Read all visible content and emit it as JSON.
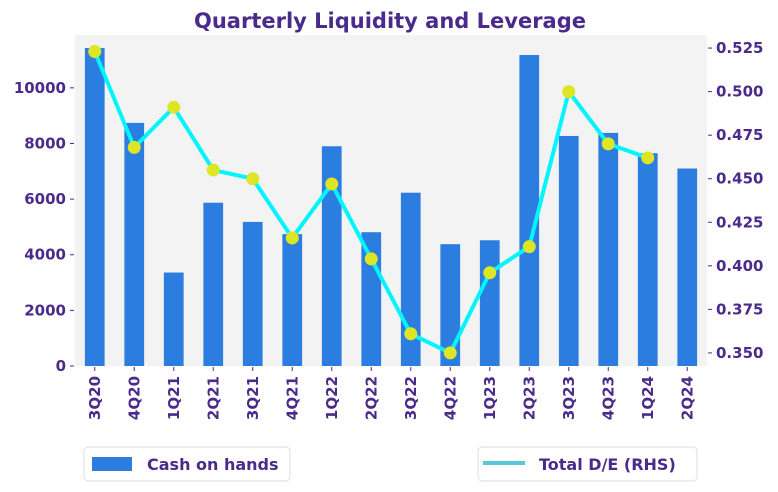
{
  "chart_data": {
    "type": "bar",
    "title": "Quarterly Liquidity and Leverage",
    "xlabel": "",
    "ylabel": "",
    "categories": [
      "3Q20",
      "4Q20",
      "1Q21",
      "2Q21",
      "3Q21",
      "4Q21",
      "1Q22",
      "2Q22",
      "3Q22",
      "4Q22",
      "1Q23",
      "2Q23",
      "3Q23",
      "4Q23",
      "1Q24",
      "2Q24"
    ],
    "series": [
      {
        "name": "Cash on hands",
        "type": "bar",
        "axis": "left",
        "color": "#2b7de0",
        "values": [
          11430,
          8740,
          3360,
          5870,
          5180,
          4740,
          7900,
          4810,
          6230,
          4380,
          4520,
          11180,
          8270,
          8380,
          7650,
          7100
        ]
      },
      {
        "name": "Total D/E (RHS)",
        "type": "line",
        "axis": "right",
        "color": "#00f5ff",
        "legend_color": "#5bc8d8",
        "marker_color": "#dde524",
        "values": [
          0.523,
          0.468,
          0.491,
          0.455,
          0.45,
          0.416,
          0.447,
          0.404,
          0.361,
          0.35,
          0.396,
          0.411,
          0.5,
          0.47,
          0.462,
          null
        ]
      }
    ],
    "y_left": {
      "ylim": [
        0,
        11900
      ],
      "ticks": [
        0,
        2000,
        4000,
        6000,
        8000,
        10000
      ],
      "tick_labels": [
        "0",
        "2000",
        "4000",
        "6000",
        "8000",
        "10000"
      ]
    },
    "y_right": {
      "ylim": [
        0.3425,
        0.5325
      ],
      "ticks": [
        0.35,
        0.375,
        0.4,
        0.425,
        0.45,
        0.475,
        0.5,
        0.525
      ],
      "tick_labels": [
        "0.350",
        "0.375",
        "0.400",
        "0.425",
        "0.450",
        "0.475",
        "0.500",
        "0.525"
      ]
    },
    "grid": false,
    "background": "#f3f3f3",
    "text_color": "#4a2a8a",
    "legend": {
      "entries": [
        {
          "label": "Cash on hands",
          "placement": "bottom-left"
        },
        {
          "label": "Total D/E (RHS)",
          "placement": "bottom-right"
        }
      ]
    }
  }
}
